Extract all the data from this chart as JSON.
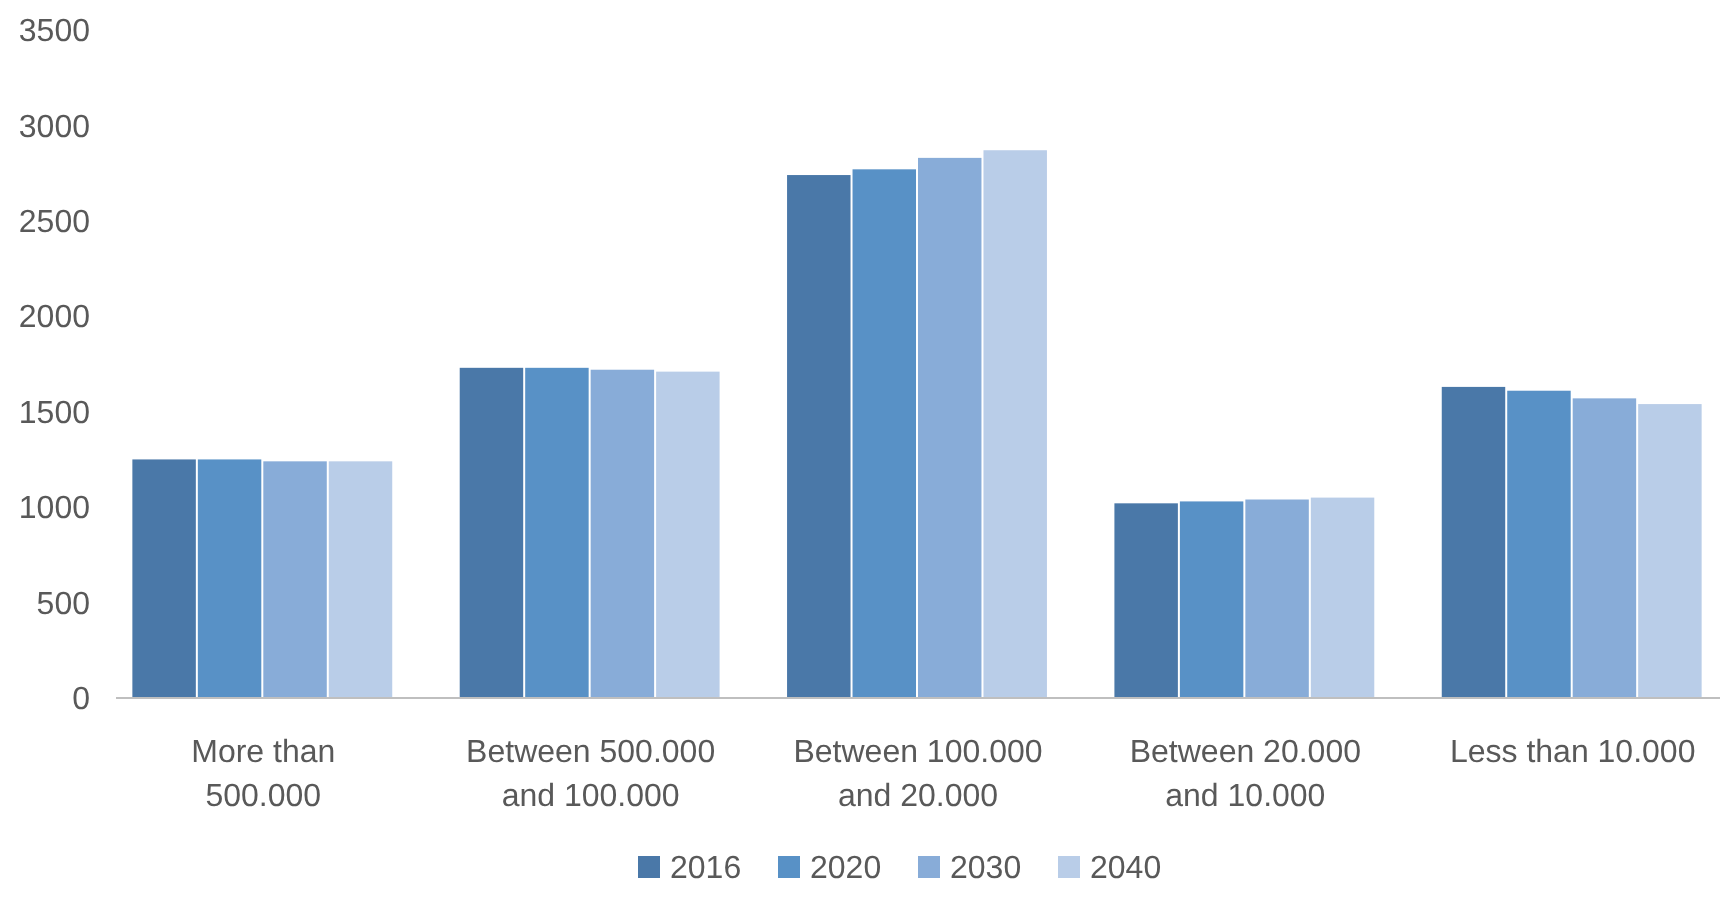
{
  "chart_data": {
    "type": "bar",
    "categories": [
      "More than 500.000",
      "Between 500.000 and 100.000",
      "Between 100.000 and 20.000",
      "Between 20.000 and 10.000",
      "Less than 10.000"
    ],
    "series": [
      {
        "name": "2016",
        "color": "#4a78a8",
        "values": [
          1250,
          1730,
          2740,
          1020,
          1630
        ]
      },
      {
        "name": "2020",
        "color": "#5891c6",
        "values": [
          1250,
          1730,
          2770,
          1030,
          1610
        ]
      },
      {
        "name": "2030",
        "color": "#88acd8",
        "values": [
          1240,
          1720,
          2830,
          1040,
          1570
        ]
      },
      {
        "name": "2040",
        "color": "#b9cde8",
        "values": [
          1240,
          1710,
          2870,
          1050,
          1540
        ]
      }
    ],
    "ylim": [
      0,
      3500
    ],
    "yticks": [
      0,
      500,
      1000,
      1500,
      2000,
      2500,
      3000,
      3500
    ],
    "grid": false,
    "legend": "bottom"
  }
}
